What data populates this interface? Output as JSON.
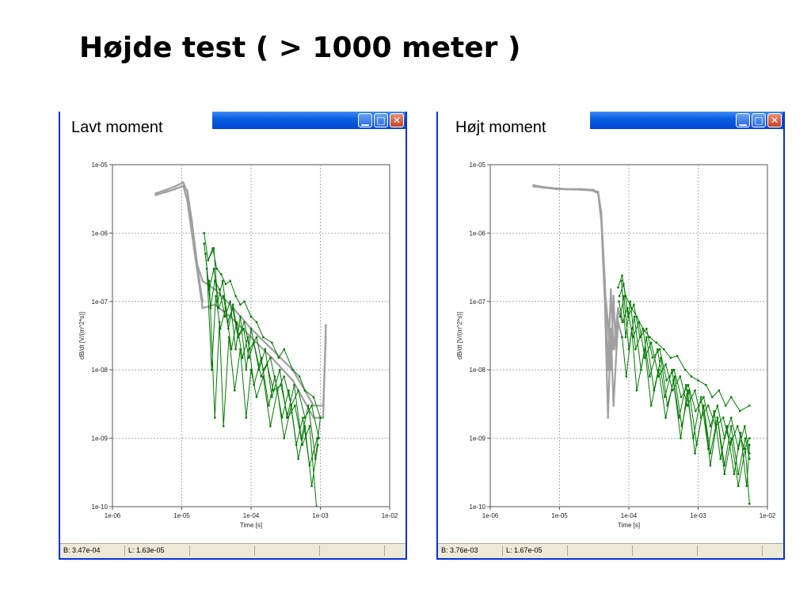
{
  "title": "Højde test ( > 1000 meter )",
  "panels": [
    {
      "label": "Lavt moment",
      "status_b": "B: 3.47e-04",
      "status_l": "L: 1.63e-05"
    },
    {
      "label": "Højt moment",
      "status_b": "B: 3.76e-03",
      "status_l": "L: 1.67e-05"
    }
  ],
  "colors": {
    "green_series": "#007a00",
    "gray_series": "#a0a0a0",
    "titlebar": "#0a5fe0"
  },
  "chart_data": [
    {
      "type": "line",
      "xscale": "log",
      "yscale": "log",
      "xlim": [
        1e-06,
        0.01
      ],
      "ylim": [
        1e-10,
        1e-05
      ],
      "xlabel": "Time [s]",
      "ylabel": "dB/dt [V/(m^2*s)]",
      "xticks": [
        "1e-06",
        "1e-05",
        "1e-04",
        "1e-03",
        "1e-02"
      ],
      "yticks": [
        "1e-10",
        "1e-09",
        "1e-08",
        "1e-07",
        "1e-06",
        "1e-05"
      ],
      "grid": true,
      "series": [
        {
          "color": "gray",
          "x": [
            4.2e-06,
            6e-06,
            8e-06,
            1.05e-05,
            1.2e-05,
            1.5e-05,
            2e-05,
            3e-05,
            5e-05,
            0.0001,
            0.0002,
            0.0004,
            0.0008,
            0.0011,
            0.0012
          ],
          "y": [
            3.6e-06,
            4e-06,
            4.4e-06,
            4.9e-06,
            3e-06,
            6e-07,
            8e-08,
            9e-08,
            6e-08,
            3e-08,
            1.5e-08,
            7e-09,
            2e-09,
            2e-09,
            4.5e-08
          ]
        },
        {
          "color": "gray",
          "x": [
            4.2e-06,
            6e-06,
            8e-06,
            1.05e-05,
            1.2e-05,
            1.6e-05,
            2e-05,
            3e-05,
            5e-05,
            0.0001,
            0.0002,
            0.0004,
            0.0008,
            0.0011,
            0.0012
          ],
          "y": [
            3.8e-06,
            4.3e-06,
            4.8e-06,
            5.5e-06,
            4e-06,
            4e-07,
            2e-07,
            1.5e-07,
            9e-08,
            4e-08,
            2e-08,
            1e-08,
            3e-09,
            3e-09,
            3e-08
          ]
        },
        {
          "color": "gray",
          "x": [
            1.2e-05,
            1.4e-05,
            1.6e-05,
            1.8e-05,
            2e-05
          ],
          "y": [
            4.2e-06,
            1.5e-06,
            5e-07,
            2e-07,
            1e-07
          ]
        },
        {
          "color": "green",
          "x": [
            2.1e-05,
            2.4e-05,
            2.8e-05,
            3.2e-05,
            3.7e-05,
            4.3e-05,
            5e-05,
            6e-05,
            7e-05,
            8e-05,
            0.0001,
            0.00012,
            0.00015,
            0.0002,
            0.00025,
            0.0003,
            0.0004,
            0.0005,
            0.0006,
            0.0008,
            0.001
          ],
          "y": [
            1e-06,
            4e-07,
            6e-07,
            3e-07,
            2.5e-07,
            1.8e-07,
            2e-07,
            1.2e-07,
            9e-08,
            1e-07,
            6e-08,
            5e-08,
            3e-08,
            2.5e-08,
            1.5e-08,
            2e-08,
            1e-08,
            8e-09,
            5e-09,
            4e-09,
            2e-09
          ]
        },
        {
          "color": "green",
          "x": [
            2.1e-05,
            2.5e-05,
            2.9e-05,
            3.4e-05,
            4e-05,
            4.7e-05,
            5.5e-05,
            6.5e-05,
            8e-05,
            9.5e-05,
            0.00012,
            0.00015,
            0.00019,
            0.00024,
            0.0003,
            0.00038,
            0.00048,
            0.0006,
            0.00075,
            0.00095
          ],
          "y": [
            7e-07,
            1.5e-07,
            3e-07,
            8e-08,
            1.2e-07,
            4e-08,
            9e-08,
            3e-08,
            5e-08,
            2e-08,
            3e-08,
            1e-08,
            1.5e-08,
            5e-09,
            8e-09,
            3e-09,
            5e-09,
            2e-09,
            3e-09,
            1e-09
          ]
        },
        {
          "color": "green",
          "x": [
            2.2e-05,
            2.6e-05,
            3e-05,
            3.5e-05,
            4.2e-05,
            5e-05,
            6e-05,
            7e-05,
            8.5e-05,
            0.0001,
            0.00013,
            0.00016,
            0.0002,
            0.00026,
            0.00033,
            0.00042,
            0.00053,
            0.00067,
            0.00085,
            0.001
          ],
          "y": [
            5e-07,
            8e-08,
            2e-07,
            1.5e-07,
            6e-08,
            1e-07,
            2e-08,
            6e-08,
            1e-08,
            4e-08,
            1e-08,
            2e-08,
            4e-09,
            1e-08,
            2e-09,
            6e-09,
            1e-09,
            3e-09,
            5e-10,
            2e-09
          ]
        },
        {
          "color": "green",
          "x": [
            2.3e-05,
            2.7e-05,
            3.1e-05,
            3.6e-05,
            4.3e-05,
            5.2e-05,
            6.2e-05,
            7.5e-05,
            9e-05,
            0.00011,
            0.00014,
            0.00018,
            0.00022,
            0.00028,
            0.00035,
            0.00045,
            0.00056,
            0.0007,
            0.0009
          ],
          "y": [
            3e-07,
            1e-08,
            1.2e-07,
            4e-08,
            8e-08,
            2e-08,
            5e-08,
            1.5e-08,
            3e-08,
            6e-09,
            1.5e-08,
            3e-09,
            8e-09,
            2e-09,
            5e-09,
            8e-10,
            2e-09,
            4e-10,
            1e-09
          ]
        },
        {
          "color": "green",
          "x": [
            2.5e-05,
            3e-05,
            3.5e-05,
            4e-05,
            4.8e-05,
            5.8e-05,
            7e-05,
            8.5e-05,
            0.0001,
            0.00012,
            0.00015,
            0.00019,
            0.00024,
            0.0003,
            0.00038,
            0.00048,
            0.0006,
            0.00075,
            0.00092
          ],
          "y": [
            2e-07,
            2e-09,
            5e-08,
            1.5e-09,
            3e-08,
            5e-09,
            2e-08,
            2e-09,
            1e-08,
            4e-09,
            8e-09,
            1.5e-09,
            5e-09,
            1e-09,
            3e-09,
            5e-10,
            1.5e-09,
            2e-10,
            8e-10
          ]
        },
        {
          "color": "green",
          "x": [
            2.4e-05,
            2.9e-05,
            3.3e-05,
            3.9e-05,
            4.6e-05,
            5.4e-05,
            6.5e-05,
            7.8e-05,
            9.3e-05,
            0.00011,
            0.00014,
            0.00017,
            0.00021,
            0.00027,
            0.00034,
            0.00043,
            0.00055,
            0.0007,
            0.00088
          ],
          "y": [
            4e-07,
            6e-07,
            1e-07,
            2e-07,
            5e-08,
            8e-08,
            3e-08,
            4e-08,
            1.5e-08,
            2.5e-08,
            8e-09,
            1.2e-08,
            5e-09,
            6e-09,
            2e-09,
            3e-09,
            8e-10,
            1.5e-09,
            1e-10
          ]
        }
      ]
    },
    {
      "type": "line",
      "xscale": "log",
      "yscale": "log",
      "xlim": [
        1e-06,
        0.01
      ],
      "ylim": [
        1e-10,
        1e-05
      ],
      "xlabel": "Time [s]",
      "ylabel": "dB/dt [V/(m^2*s)]",
      "xticks": [
        "1e-06",
        "1e-05",
        "1e-04",
        "1e-03",
        "1e-02"
      ],
      "yticks": [
        "1e-10",
        "1e-09",
        "1e-08",
        "1e-07",
        "1e-06",
        "1e-05"
      ],
      "grid": true,
      "series": [
        {
          "color": "gray",
          "x": [
            4.2e-06,
            6e-06,
            9e-06,
            1.3e-05,
            2e-05,
            3e-05,
            3.6e-05,
            4e-05,
            4.5e-05,
            5e-05,
            5.5e-05,
            6e-05,
            7e-05,
            8e-05
          ],
          "y": [
            4.8e-06,
            4.6e-06,
            4.4e-06,
            4.35e-06,
            4.3e-06,
            4.2e-06,
            3.8e-06,
            1.5e-06,
            1e-07,
            2e-09,
            4e-08,
            3e-09,
            5e-08,
            3e-08
          ]
        },
        {
          "color": "gray",
          "x": [
            4.2e-06,
            6e-06,
            9e-06,
            1.3e-05,
            2e-05,
            3e-05,
            3.6e-05,
            4e-05,
            4.5e-05,
            5e-05,
            5.5e-05,
            6e-05,
            7e-05,
            8e-05
          ],
          "y": [
            5e-06,
            4.7e-06,
            4.5e-06,
            4.4e-06,
            4.4e-06,
            4.3e-06,
            4e-06,
            2e-06,
            2e-07,
            1e-08,
            1.5e-07,
            2e-08,
            8e-08,
            5e-08
          ]
        },
        {
          "color": "gray",
          "x": [
            4.5e-05,
            5e-05,
            5.5e-05,
            6e-05,
            6.5e-05,
            7e-05
          ],
          "y": [
            1.5e-07,
            5e-08,
            1e-08,
            1.2e-07,
            2e-08,
            7e-08
          ]
        },
        {
          "color": "green",
          "x": [
            7e-05,
            8e-05,
            9e-05,
            0.00011,
            0.00013,
            0.00016,
            0.0002,
            0.00025,
            0.00032,
            0.0004,
            0.0005,
            0.00065,
            0.0008,
            0.001,
            0.0013,
            0.0016,
            0.002,
            0.0025,
            0.003,
            0.004,
            0.0055
          ],
          "y": [
            1.6e-07,
            2.4e-07,
            1.2e-07,
            8e-08,
            6e-08,
            4e-08,
            3e-08,
            2.5e-08,
            2e-08,
            1.5e-08,
            1.6e-08,
            1e-08,
            8e-09,
            7e-09,
            6e-09,
            4e-09,
            5e-09,
            3e-09,
            4e-09,
            2.5e-09,
            3e-09
          ]
        },
        {
          "color": "green",
          "x": [
            7.2e-05,
            8.2e-05,
            9.5e-05,
            0.000115,
            0.00014,
            0.00017,
            0.00021,
            0.00027,
            0.00034,
            0.00043,
            0.00055,
            0.0007,
            0.0009,
            0.0011,
            0.0014,
            0.0018,
            0.0023,
            0.0029,
            0.0037,
            0.0046,
            0.0055
          ],
          "y": [
            1e-07,
            5e-08,
            8e-08,
            3e-08,
            5e-08,
            1.5e-08,
            2.5e-08,
            8e-09,
            1.2e-08,
            5e-09,
            8e-09,
            3e-09,
            5e-09,
            2e-09,
            3e-09,
            1.5e-09,
            2e-09,
            8e-10,
            1.5e-09,
            7e-10,
            1e-09
          ]
        },
        {
          "color": "green",
          "x": [
            7.5e-05,
            8.5e-05,
            0.0001,
            0.00012,
            0.00015,
            0.00018,
            0.00023,
            0.00029,
            0.00036,
            0.00046,
            0.00058,
            0.00074,
            0.00095,
            0.0012,
            0.0015,
            0.0019,
            0.0024,
            0.003,
            0.0038,
            0.0048,
            0.0055
          ],
          "y": [
            6e-08,
            1.2e-07,
            2e-08,
            6e-08,
            1e-08,
            3e-08,
            5e-09,
            1.5e-08,
            3e-09,
            8e-09,
            1.5e-09,
            5e-09,
            8e-10,
            3e-09,
            6e-10,
            2e-09,
            4e-10,
            1.5e-09,
            3e-10,
            1e-09,
            5e-10
          ]
        },
        {
          "color": "green",
          "x": [
            7.8e-05,
            9e-05,
            0.000105,
            0.000125,
            0.00016,
            0.0002,
            0.00026,
            0.00033,
            0.00042,
            0.00053,
            0.00067,
            0.00085,
            0.0011,
            0.0014,
            0.0017,
            0.0021,
            0.0026,
            0.0033,
            0.0041,
            0.005,
            0.0055
          ],
          "y": [
            2e-07,
            3e-08,
            1e-07,
            2e-08,
            4e-08,
            8e-09,
            2e-08,
            4e-09,
            1e-08,
            2e-09,
            6e-09,
            1e-09,
            4e-09,
            7e-10,
            2.5e-09,
            5e-10,
            1.5e-09,
            3e-10,
            1.2e-09,
            2e-10,
            8e-10
          ]
        },
        {
          "color": "green",
          "x": [
            8e-05,
            9.2e-05,
            0.00011,
            0.00013,
            0.00017,
            0.00021,
            0.00027,
            0.00034,
            0.00044,
            0.00056,
            0.0007,
            0.0009,
            0.0012,
            0.0015,
            0.0019,
            0.0024,
            0.003,
            0.0038,
            0.0048,
            0.0055
          ],
          "y": [
            3e-08,
            8e-09,
            4e-08,
            5e-09,
            2e-08,
            3e-09,
            1e-08,
            2e-09,
            7e-09,
            1e-09,
            5e-09,
            6e-10,
            3e-09,
            4e-10,
            2e-09,
            3e-10,
            1e-09,
            2e-10,
            7e-10,
            1.1e-10
          ]
        },
        {
          "color": "green",
          "x": [
            7.3e-05,
            8.4e-05,
            9.8e-05,
            0.000118,
            0.000145,
            0.00018,
            0.00022,
            0.00028,
            0.00035,
            0.00045,
            0.00057,
            0.00072,
            0.00092,
            0.0012,
            0.0015,
            0.0019,
            0.0024,
            0.003,
            0.0038,
            0.0047,
            0.0055
          ],
          "y": [
            1.2e-07,
            1.8e-07,
            6e-08,
            9e-08,
            3e-08,
            4e-08,
            1.5e-08,
            2e-08,
            7e-09,
            1e-08,
            4e-09,
            6e-09,
            2.5e-09,
            4e-09,
            1.5e-09,
            3e-09,
            1e-09,
            2e-09,
            7e-10,
            1.5e-09,
            6e-10
          ]
        }
      ]
    }
  ]
}
